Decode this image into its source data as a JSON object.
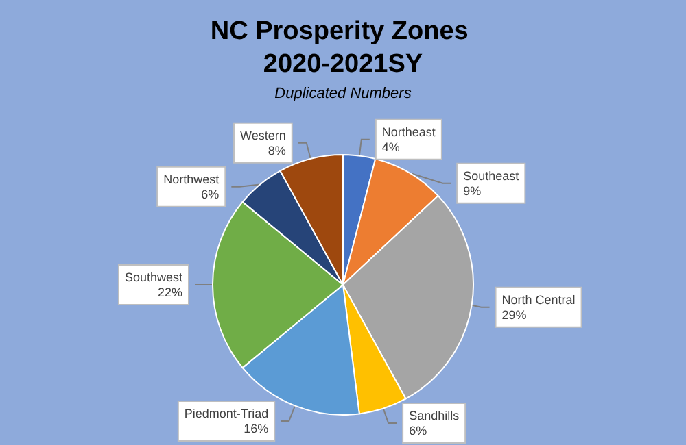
{
  "chart_data": {
    "type": "pie",
    "title": "NC Prosperity Zones 2020-2021SY",
    "subtitle": "Duplicated Numbers",
    "categories": [
      "Northeast",
      "Southeast",
      "North Central",
      "Sandhills",
      "Piedmont-Triad",
      "Southwest",
      "Northwest",
      "Western"
    ],
    "values": [
      4,
      9,
      29,
      6,
      16,
      22,
      6,
      8
    ],
    "colors": [
      "#4472c4",
      "#ed7d31",
      "#a5a5a5",
      "#ffc000",
      "#5b9bd5",
      "#70ad47",
      "#264478",
      "#9e480e"
    ],
    "value_labels": [
      "4%",
      "9%",
      "29%",
      "6%",
      "16%",
      "22%",
      "6%",
      "8%"
    ],
    "legend": false
  }
}
